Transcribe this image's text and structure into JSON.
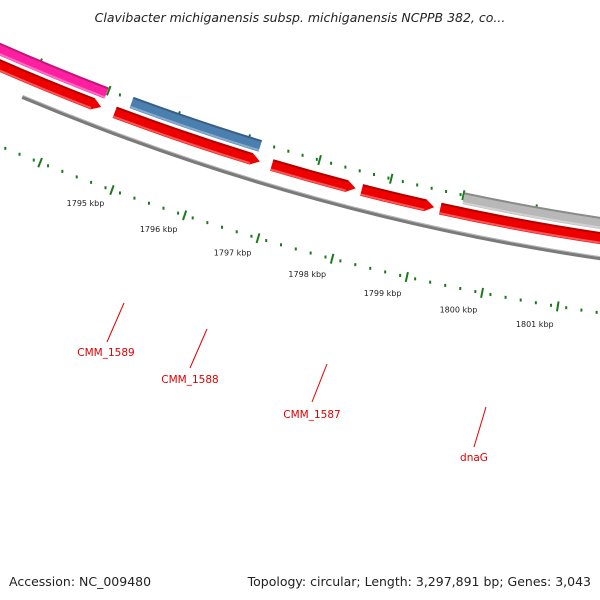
{
  "title": "Clavibacter michiganensis subsp. michiganensis NCPPB 382, co...",
  "footer": {
    "accession": "Accession: NC_009480",
    "summary": "Topology: circular; Length: 3,297,891 bp; Genes: 3,043"
  },
  "ruler": {
    "labels": [
      "1801 kbp",
      "1800 kbp",
      "1799 kbp",
      "1798 kbp",
      "1797 kbp",
      "1796 kbp",
      "1795 kbp"
    ],
    "color": "#1a7a1a"
  },
  "backbone": {
    "color": "#7a7a7a"
  },
  "genes": [
    {
      "label": "",
      "strand": "forward",
      "color": "#ee0000"
    },
    {
      "label": "",
      "strand": "reverse",
      "color": "#b8b8b8"
    },
    {
      "label": "CMM_1589",
      "strand": "forward",
      "color": "#ee0000"
    },
    {
      "label": "CMM_1588",
      "strand": "forward",
      "color": "#ee0000"
    },
    {
      "label": "",
      "strand": "forward",
      "color": "#ee0000"
    },
    {
      "label": "CMM_1587",
      "strand": "reverse",
      "color": "#4a7fb0"
    },
    {
      "label": "",
      "strand": "forward",
      "color": "#ee0000"
    },
    {
      "label": "dnaG",
      "strand": "reverse",
      "color": "#ff1fa0"
    },
    {
      "label": "",
      "strand": "forward",
      "color": "#ee0000"
    },
    {
      "label": "",
      "strand": "reverse",
      "color": "#00b8f0"
    }
  ],
  "label_color": "#e00000"
}
